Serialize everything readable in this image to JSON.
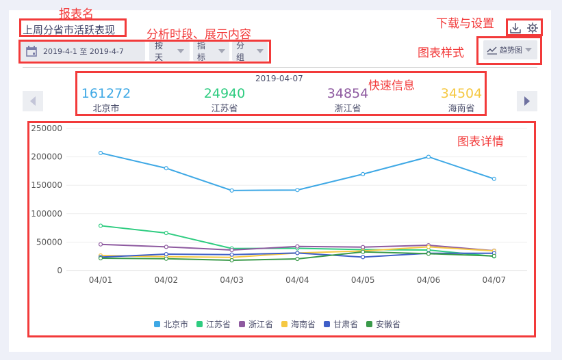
{
  "report": {
    "title": "上周分省市活跃表现"
  },
  "toolbar": {
    "date_range": "2019-4-1 至 2019-4-7",
    "granularity": "按天",
    "metric": "指标",
    "group": "分组",
    "chart_style": "趋势图"
  },
  "annotations": {
    "report_name": "报表名",
    "filters": "分析时段、展示内容",
    "download_settings": "下载与设置",
    "chart_style": "图表样式",
    "quick_info": "快速信息",
    "chart_detail": "图表详情"
  },
  "quick": {
    "date": "2019-04-07",
    "items": [
      {
        "value": "161272",
        "label": "北京市",
        "color": "#3ea8e5"
      },
      {
        "value": "24940",
        "label": "江苏省",
        "color": "#2ecc80"
      },
      {
        "value": "34854",
        "label": "浙江省",
        "color": "#8e5aa0"
      },
      {
        "value": "34504",
        "label": "海南省",
        "color": "#f5c842"
      }
    ]
  },
  "chart_data": {
    "type": "line",
    "x": [
      "04/01",
      "04/02",
      "04/03",
      "04/04",
      "04/05",
      "04/06",
      "04/07"
    ],
    "ylim": [
      0,
      250000
    ],
    "yticks": [
      "0",
      "50000",
      "100000",
      "150000",
      "200000",
      "250000"
    ],
    "legend": "bottom",
    "series": [
      {
        "name": "北京市",
        "color": "#3ea8e5",
        "values": [
          206800,
          180000,
          140800,
          141600,
          169600,
          200000,
          161272
        ]
      },
      {
        "name": "江苏省",
        "color": "#2ecc80",
        "values": [
          78800,
          66000,
          38800,
          39000,
          36800,
          36000,
          24940
        ]
      },
      {
        "name": "浙江省",
        "color": "#8e5aa0",
        "values": [
          46000,
          41600,
          36000,
          42400,
          41200,
          44400,
          34854
        ]
      },
      {
        "name": "海南省",
        "color": "#f5c842",
        "values": [
          26400,
          24400,
          23200,
          30800,
          34400,
          41600,
          34504
        ]
      },
      {
        "name": "甘肃省",
        "color": "#3f5fc8",
        "values": [
          23600,
          28800,
          28000,
          30800,
          23600,
          30400,
          30400
        ]
      },
      {
        "name": "安徽省",
        "color": "#3a9a4a",
        "values": [
          21600,
          20800,
          18000,
          20400,
          32800,
          29600,
          25600
        ]
      }
    ]
  }
}
